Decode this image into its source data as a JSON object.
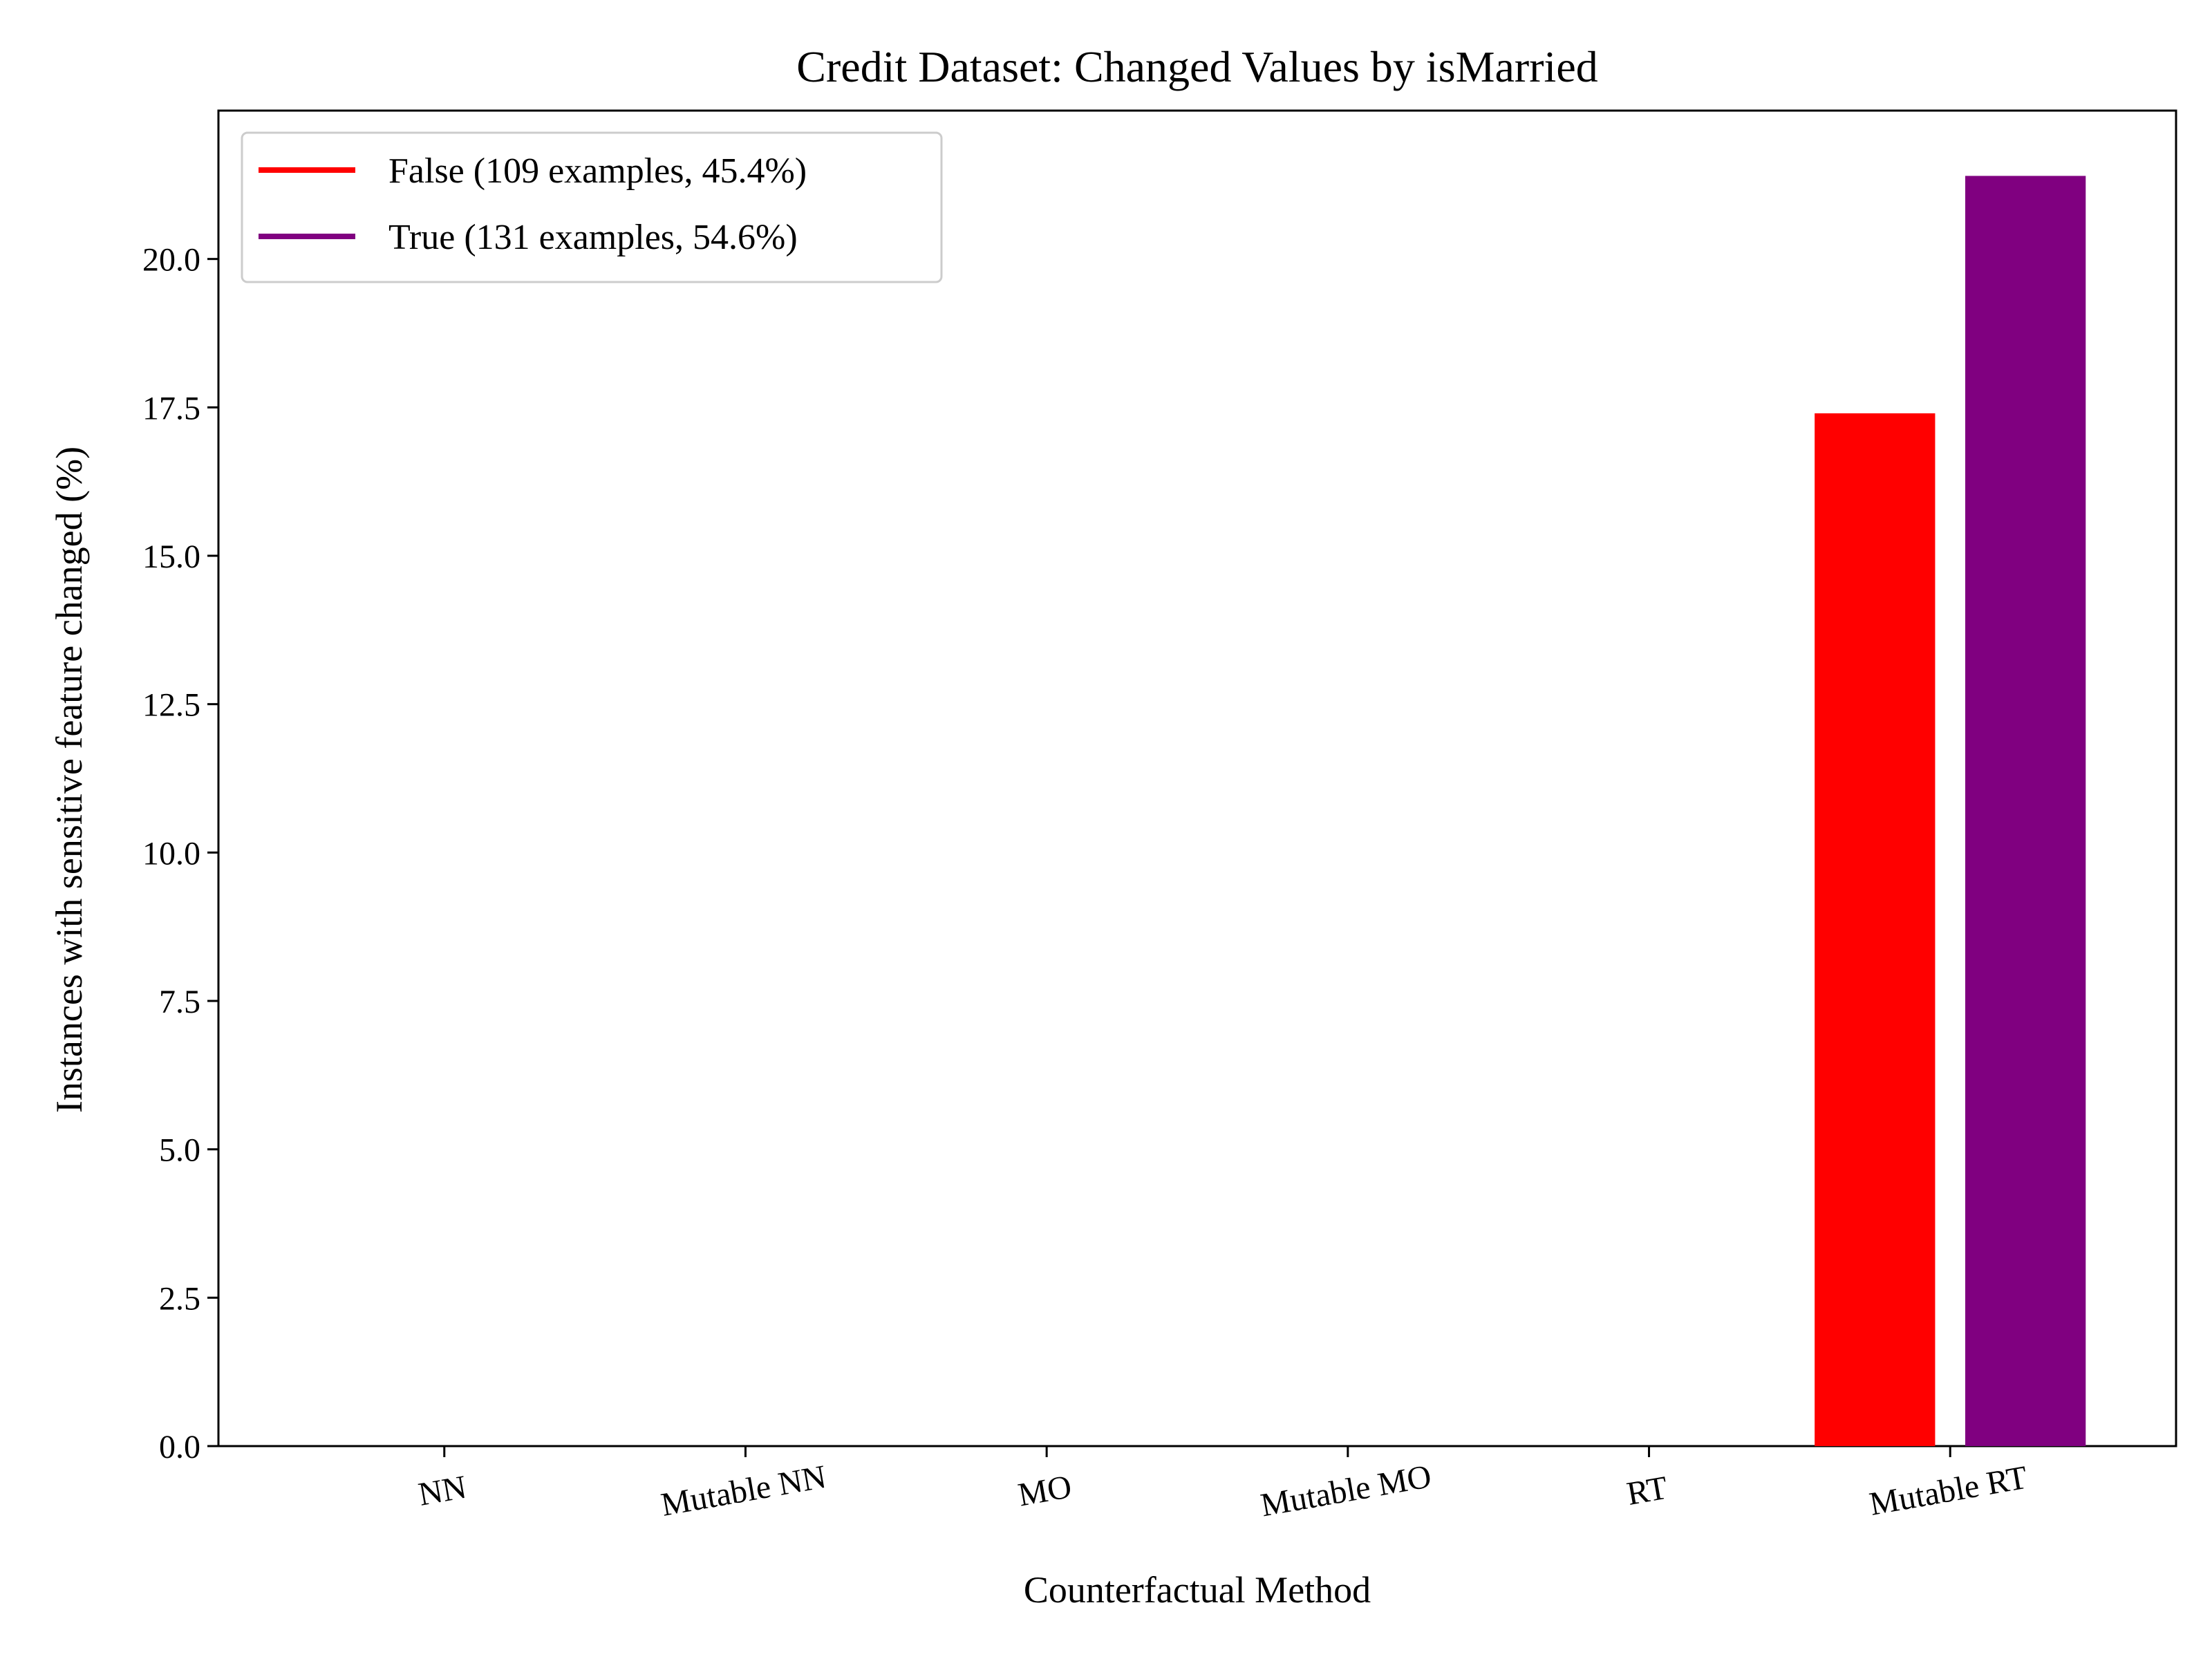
{
  "chart_data": {
    "type": "bar",
    "title": "Credit Dataset: Changed Values by isMarried",
    "xlabel": "Counterfactual Method",
    "ylabel": "Instances with sensitive feature changed (%)",
    "categories": [
      "NN",
      "Mutable NN",
      "MO",
      "Mutable MO",
      "RT",
      "Mutable RT"
    ],
    "series": [
      {
        "name": "False (109 examples, 45.4%)",
        "color": "#ff0000",
        "values": [
          0,
          0,
          0,
          0,
          0,
          17.4
        ]
      },
      {
        "name": "True (131 examples, 54.6%)",
        "color": "#800080",
        "values": [
          0,
          0,
          0,
          0,
          0,
          21.4
        ]
      }
    ],
    "ylim": [
      0,
      22.5
    ],
    "yticks": [
      0.0,
      2.5,
      5.0,
      7.5,
      10.0,
      12.5,
      15.0,
      17.5,
      20.0
    ],
    "ytick_labels": [
      "0.0",
      "2.5",
      "5.0",
      "7.5",
      "10.0",
      "12.5",
      "15.0",
      "17.5",
      "20.0"
    ],
    "grid": false,
    "legend_position": "top-left"
  }
}
